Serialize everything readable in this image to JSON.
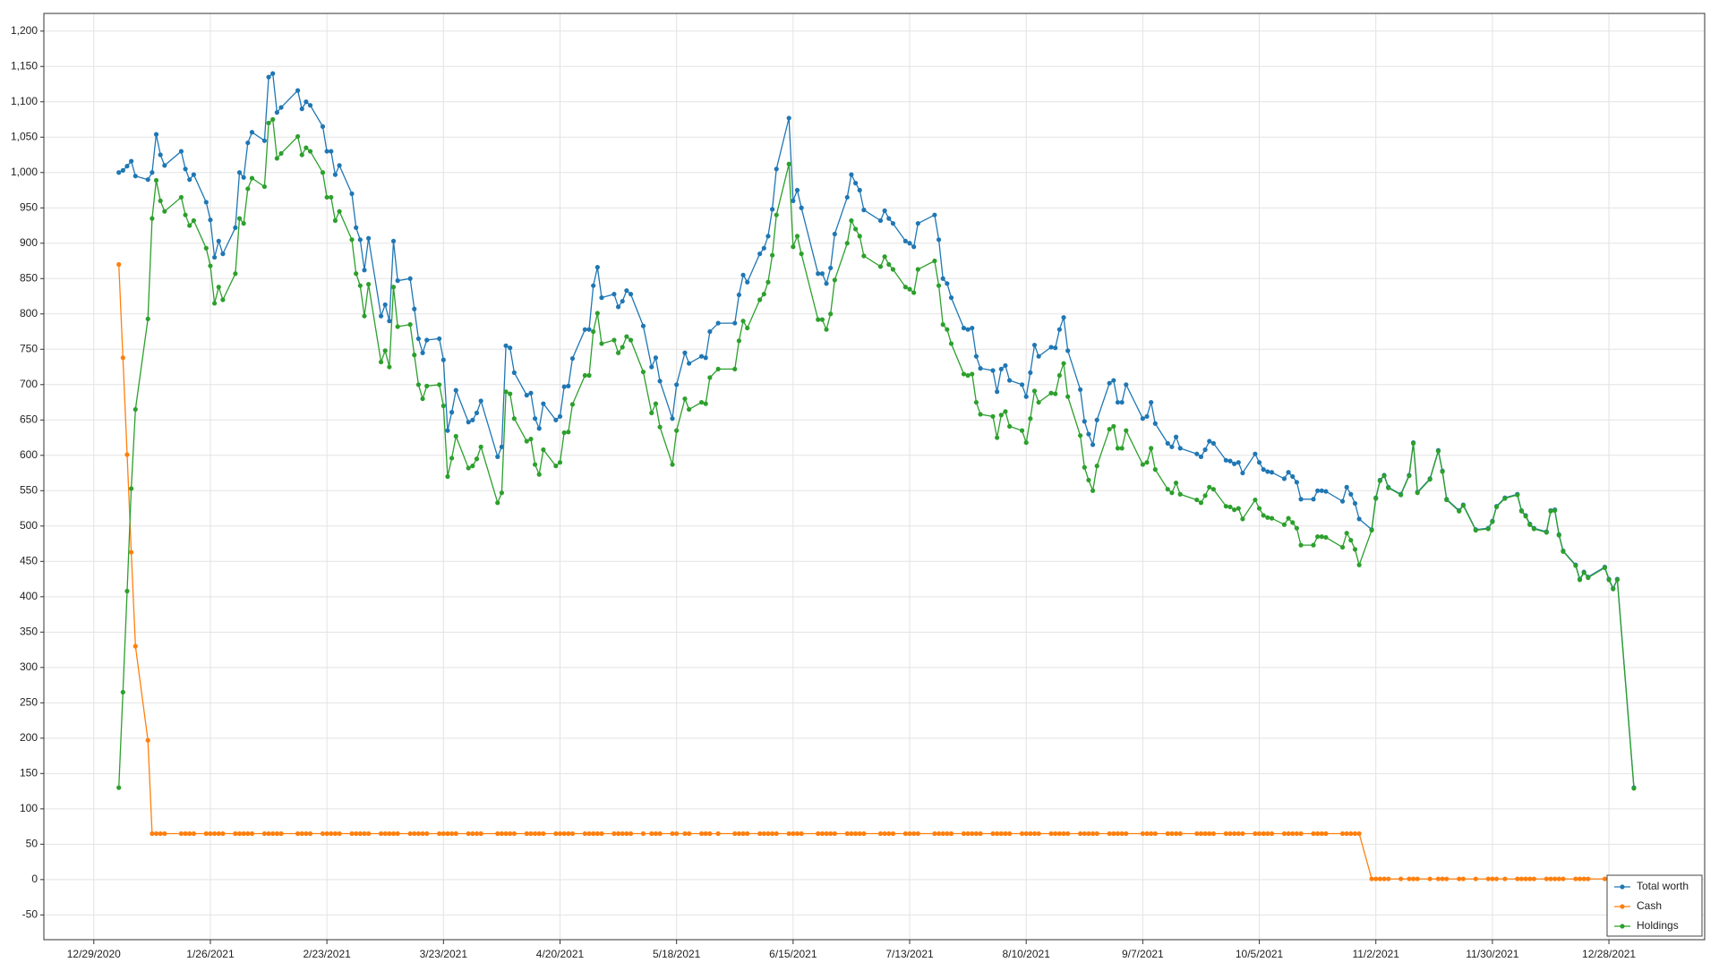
{
  "chart_data": {
    "type": "line",
    "x": [
      "1/4/2021",
      "1/5/2021",
      "1/6/2021",
      "1/7/2021",
      "1/8/2021",
      "1/11/2021",
      "1/12/2021",
      "1/13/2021",
      "1/14/2021",
      "1/15/2021",
      "1/19/2021",
      "1/20/2021",
      "1/21/2021",
      "1/22/2021",
      "1/25/2021",
      "1/26/2021",
      "1/27/2021",
      "1/28/2021",
      "1/29/2021",
      "2/1/2021",
      "2/2/2021",
      "2/3/2021",
      "2/4/2021",
      "2/5/2021",
      "2/8/2021",
      "2/9/2021",
      "2/10/2021",
      "2/11/2021",
      "2/12/2021",
      "2/16/2021",
      "2/17/2021",
      "2/18/2021",
      "2/19/2021",
      "2/22/2021",
      "2/23/2021",
      "2/24/2021",
      "2/25/2021",
      "2/26/2021",
      "3/1/2021",
      "3/2/2021",
      "3/3/2021",
      "3/4/2021",
      "3/5/2021",
      "3/8/2021",
      "3/9/2021",
      "3/10/2021",
      "3/11/2021",
      "3/12/2021",
      "3/15/2021",
      "3/16/2021",
      "3/17/2021",
      "3/18/2021",
      "3/19/2021",
      "3/22/2021",
      "3/23/2021",
      "3/24/2021",
      "3/25/2021",
      "3/26/2021",
      "3/29/2021",
      "3/30/2021",
      "3/31/2021",
      "4/1/2021",
      "4/5/2021",
      "4/6/2021",
      "4/7/2021",
      "4/8/2021",
      "4/9/2021",
      "4/12/2021",
      "4/13/2021",
      "4/14/2021",
      "4/15/2021",
      "4/16/2021",
      "4/19/2021",
      "4/20/2021",
      "4/21/2021",
      "4/22/2021",
      "4/23/2021",
      "4/26/2021",
      "4/27/2021",
      "4/28/2021",
      "4/29/2021",
      "4/30/2021",
      "5/3/2021",
      "5/4/2021",
      "5/5/2021",
      "5/6/2021",
      "5/7/2021",
      "5/10/2021",
      "5/12/2021",
      "5/13/2021",
      "5/14/2021",
      "5/17/2021",
      "5/18/2021",
      "5/20/2021",
      "5/21/2021",
      "5/24/2021",
      "5/25/2021",
      "5/26/2021",
      "5/28/2021",
      "6/1/2021",
      "6/2/2021",
      "6/3/2021",
      "6/4/2021",
      "6/7/2021",
      "6/8/2021",
      "6/9/2021",
      "6/10/2021",
      "6/11/2021",
      "6/14/2021",
      "6/15/2021",
      "6/16/2021",
      "6/17/2021",
      "6/21/2021",
      "6/22/2021",
      "6/23/2021",
      "6/24/2021",
      "6/25/2021",
      "6/28/2021",
      "6/29/2021",
      "6/30/2021",
      "7/1/2021",
      "7/2/2021",
      "7/6/2021",
      "7/7/2021",
      "7/8/2021",
      "7/9/2021",
      "7/12/2021",
      "7/13/2021",
      "7/14/2021",
      "7/15/2021",
      "7/19/2021",
      "7/20/2021",
      "7/21/2021",
      "7/22/2021",
      "7/23/2021",
      "7/26/2021",
      "7/27/2021",
      "7/28/2021",
      "7/29/2021",
      "7/30/2021",
      "8/2/2021",
      "8/3/2021",
      "8/4/2021",
      "8/5/2021",
      "8/6/2021",
      "8/9/2021",
      "8/10/2021",
      "8/11/2021",
      "8/12/2021",
      "8/13/2021",
      "8/16/2021",
      "8/17/2021",
      "8/18/2021",
      "8/19/2021",
      "8/20/2021",
      "8/23/2021",
      "8/24/2021",
      "8/25/2021",
      "8/26/2021",
      "8/27/2021",
      "8/30/2021",
      "8/31/2021",
      "9/1/2021",
      "9/2/2021",
      "9/3/2021",
      "9/7/2021",
      "9/8/2021",
      "9/9/2021",
      "9/10/2021",
      "9/13/2021",
      "9/14/2021",
      "9/15/2021",
      "9/16/2021",
      "9/20/2021",
      "9/21/2021",
      "9/22/2021",
      "9/23/2021",
      "9/24/2021",
      "9/27/2021",
      "9/28/2021",
      "9/29/2021",
      "9/30/2021",
      "10/1/2021",
      "10/4/2021",
      "10/5/2021",
      "10/6/2021",
      "10/7/2021",
      "10/8/2021",
      "10/11/2021",
      "10/12/2021",
      "10/13/2021",
      "10/14/2021",
      "10/15/2021",
      "10/18/2021",
      "10/19/2021",
      "10/20/2021",
      "10/21/2021",
      "10/25/2021",
      "10/26/2021",
      "10/27/2021",
      "10/28/2021",
      "10/29/2021",
      "11/1/2021",
      "11/2/2021",
      "11/3/2021",
      "11/4/2021",
      "11/5/2021",
      "11/8/2021",
      "11/10/2021",
      "11/11/2021",
      "11/12/2021",
      "11/15/2021",
      "11/17/2021",
      "11/18/2021",
      "11/19/2021",
      "11/22/2021",
      "11/23/2021",
      "11/26/2021",
      "11/29/2021",
      "11/30/2021",
      "12/1/2021",
      "12/3/2021",
      "12/6/2021",
      "12/7/2021",
      "12/8/2021",
      "12/9/2021",
      "12/10/2021",
      "12/13/2021",
      "12/14/2021",
      "12/15/2021",
      "12/16/2021",
      "12/17/2021",
      "12/20/2021",
      "12/21/2021",
      "12/22/2021",
      "12/23/2021",
      "12/27/2021",
      "12/28/2021",
      "12/29/2021",
      "12/30/2021",
      "1/3/2022"
    ],
    "series": [
      {
        "name": "Total worth",
        "color": "#1f77b4",
        "values": [
          1000,
          1003,
          1009,
          1016,
          995,
          990,
          1000,
          1054,
          1025,
          1010,
          1030,
          1005,
          990,
          997,
          958,
          933,
          880,
          903,
          885,
          922,
          1000,
          993,
          1042,
          1057,
          1045,
          1135,
          1140,
          1085,
          1092,
          1116,
          1090,
          1100,
          1095,
          1065,
          1030,
          1030,
          997,
          1010,
          970,
          922,
          905,
          862,
          907,
          797,
          813,
          790,
          903,
          847,
          850,
          807,
          765,
          745,
          763,
          765,
          735,
          635,
          661,
          692,
          647,
          650,
          660,
          677,
          598,
          612,
          755,
          752,
          717,
          685,
          688,
          652,
          638,
          673,
          650,
          655,
          697,
          698,
          737,
          778,
          778,
          840,
          866,
          823,
          828,
          810,
          818,
          833,
          828,
          783,
          725,
          738,
          705,
          652,
          700,
          745,
          730,
          740,
          738,
          775,
          787,
          787,
          827,
          855,
          845,
          885,
          893,
          910,
          948,
          1005,
          1077,
          960,
          975,
          950,
          857,
          857,
          843,
          865,
          913,
          965,
          997,
          985,
          975,
          947,
          932,
          946,
          935,
          928,
          903,
          900,
          895,
          928,
          940,
          905,
          850,
          843,
          823,
          780,
          778,
          780,
          740,
          723,
          720,
          690,
          722,
          727,
          706,
          700,
          683,
          717,
          756,
          740,
          753,
          752,
          778,
          795,
          748,
          693,
          648,
          630,
          615,
          650,
          702,
          706,
          675,
          675,
          700,
          652,
          655,
          675,
          645,
          617,
          612,
          626,
          610,
          602,
          598,
          608,
          620,
          617,
          593,
          592,
          588,
          590,
          575,
          602,
          590,
          580,
          577,
          576,
          567,
          576,
          570,
          562,
          538,
          538,
          550,
          550,
          549,
          535,
          555,
          545,
          532,
          510,
          495,
          540,
          565,
          572,
          555,
          545,
          572,
          618,
          548,
          567,
          607,
          578,
          538,
          522,
          530,
          495,
          497,
          507,
          528,
          540,
          545,
          522,
          515,
          503,
          497,
          492,
          522,
          523,
          488,
          465,
          445,
          425,
          435,
          428,
          442,
          425,
          412,
          425,
          130
        ]
      },
      {
        "name": "Cash",
        "color": "#ff7f0e",
        "values": [
          870,
          738,
          601,
          463,
          330,
          197,
          65,
          65,
          65,
          65,
          65,
          65,
          65,
          65,
          65,
          65,
          65,
          65,
          65,
          65,
          65,
          65,
          65,
          65,
          65,
          65,
          65,
          65,
          65,
          65,
          65,
          65,
          65,
          65,
          65,
          65,
          65,
          65,
          65,
          65,
          65,
          65,
          65,
          65,
          65,
          65,
          65,
          65,
          65,
          65,
          65,
          65,
          65,
          65,
          65,
          65,
          65,
          65,
          65,
          65,
          65,
          65,
          65,
          65,
          65,
          65,
          65,
          65,
          65,
          65,
          65,
          65,
          65,
          65,
          65,
          65,
          65,
          65,
          65,
          65,
          65,
          65,
          65,
          65,
          65,
          65,
          65,
          65,
          65,
          65,
          65,
          65,
          65,
          65,
          65,
          65,
          65,
          65,
          65,
          65,
          65,
          65,
          65,
          65,
          65,
          65,
          65,
          65,
          65,
          65,
          65,
          65,
          65,
          65,
          65,
          65,
          65,
          65,
          65,
          65,
          65,
          65,
          65,
          65,
          65,
          65,
          65,
          65,
          65,
          65,
          65,
          65,
          65,
          65,
          65,
          65,
          65,
          65,
          65,
          65,
          65,
          65,
          65,
          65,
          65,
          65,
          65,
          65,
          65,
          65,
          65,
          65,
          65,
          65,
          65,
          65,
          65,
          65,
          65,
          65,
          65,
          65,
          65,
          65,
          65,
          65,
          65,
          65,
          65,
          65,
          65,
          65,
          65,
          65,
          65,
          65,
          65,
          65,
          65,
          65,
          65,
          65,
          65,
          65,
          65,
          65,
          65,
          65,
          65,
          65,
          65,
          65,
          65,
          65,
          65,
          65,
          65,
          65,
          65,
          65,
          65,
          65,
          1,
          1,
          1,
          1,
          1,
          1,
          1,
          1,
          1,
          1,
          1,
          1,
          1,
          1,
          1,
          1,
          1,
          1,
          1,
          1,
          1,
          1,
          1,
          1,
          1,
          1,
          1,
          1,
          1,
          1,
          1,
          1,
          1,
          1,
          1,
          1,
          1,
          1,
          1
        ]
      },
      {
        "name": "Holdings",
        "color": "#2ca02c",
        "values": [
          130,
          265,
          408,
          553,
          665,
          793,
          935,
          989,
          960,
          945,
          965,
          940,
          925,
          932,
          893,
          868,
          815,
          838,
          820,
          857,
          935,
          928,
          977,
          992,
          980,
          1070,
          1075,
          1020,
          1027,
          1051,
          1025,
          1035,
          1030,
          1000,
          965,
          965,
          932,
          945,
          905,
          857,
          840,
          797,
          842,
          732,
          748,
          725,
          838,
          782,
          785,
          742,
          700,
          680,
          698,
          700,
          670,
          570,
          596,
          627,
          582,
          585,
          595,
          612,
          533,
          547,
          690,
          687,
          652,
          620,
          623,
          587,
          573,
          608,
          585,
          590,
          632,
          633,
          672,
          713,
          713,
          775,
          801,
          758,
          763,
          745,
          753,
          768,
          763,
          718,
          660,
          673,
          640,
          587,
          635,
          680,
          665,
          675,
          673,
          710,
          722,
          722,
          762,
          790,
          780,
          820,
          828,
          845,
          883,
          940,
          1012,
          895,
          910,
          885,
          792,
          792,
          778,
          800,
          848,
          900,
          932,
          920,
          910,
          882,
          867,
          881,
          870,
          863,
          838,
          835,
          830,
          863,
          875,
          840,
          785,
          778,
          758,
          715,
          713,
          715,
          675,
          658,
          655,
          625,
          657,
          662,
          641,
          635,
          618,
          652,
          691,
          675,
          688,
          687,
          713,
          730,
          683,
          628,
          583,
          565,
          550,
          585,
          637,
          641,
          610,
          610,
          635,
          587,
          590,
          610,
          580,
          552,
          547,
          561,
          545,
          537,
          533,
          543,
          555,
          552,
          528,
          527,
          523,
          525,
          510,
          537,
          525,
          515,
          512,
          511,
          502,
          511,
          505,
          497,
          473,
          473,
          485,
          485,
          484,
          470,
          490,
          480,
          467,
          445,
          494,
          539,
          564,
          571,
          554,
          544,
          571,
          617,
          547,
          566,
          606,
          577,
          537,
          521,
          529,
          494,
          496,
          506,
          527,
          539,
          544,
          521,
          514,
          502,
          496,
          491,
          521,
          522,
          487,
          464,
          444,
          424,
          434,
          427,
          441,
          424,
          411,
          424,
          129
        ]
      }
    ],
    "xlim": [
      "12/17/2020",
      "1/20/2022"
    ],
    "xticks": [
      "12/29/2020",
      "1/26/2021",
      "2/23/2021",
      "3/23/2021",
      "4/20/2021",
      "5/18/2021",
      "6/15/2021",
      "7/13/2021",
      "8/10/2021",
      "9/7/2021",
      "10/5/2021",
      "11/2/2021",
      "11/30/2021",
      "12/28/2021"
    ],
    "ylim": [
      -85,
      1225
    ],
    "yticks": [
      -50,
      0,
      50,
      100,
      150,
      200,
      250,
      300,
      350,
      400,
      450,
      500,
      550,
      600,
      650,
      700,
      750,
      800,
      850,
      900,
      950,
      {
        "value": 1000,
        "label": "1,000"
      },
      {
        "value": 1050,
        "label": "1,050"
      },
      {
        "value": 1100,
        "label": "1,100"
      },
      {
        "value": 1150,
        "label": "1,150"
      },
      {
        "value": 1200,
        "label": "1,200"
      }
    ],
    "grid": true,
    "legend": "lower right"
  }
}
